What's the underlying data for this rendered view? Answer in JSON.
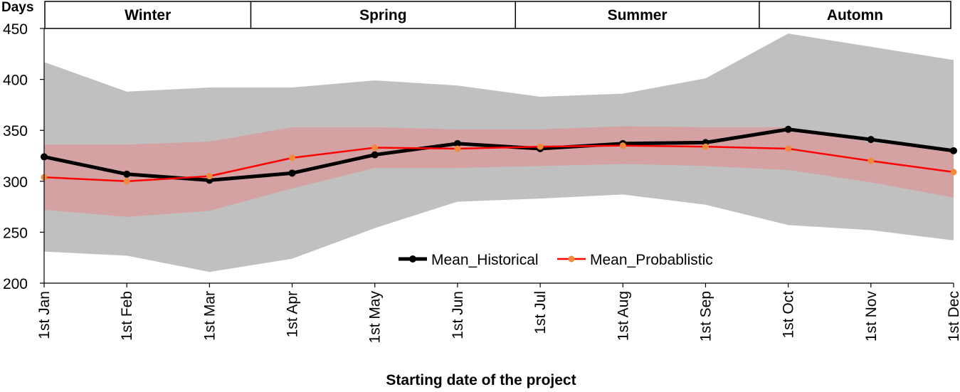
{
  "chart_data": {
    "type": "area",
    "y_unit_label": "Days",
    "xlabel": "Starting date of the project",
    "ylim": [
      200,
      450
    ],
    "yticks": [
      200,
      250,
      300,
      350,
      400,
      450
    ],
    "grid": false,
    "legend_position": "bottom-center",
    "categories": [
      "1st Jan",
      "1st Feb",
      "1st Mar",
      "1st Apr",
      "1st May",
      "1st Jun",
      "1st Jul",
      "1st Aug",
      "1st Sep",
      "1st Oct",
      "1st Nov",
      "1st Dec"
    ],
    "seasons": [
      {
        "label": "Winter",
        "from_index": 0,
        "to_index": 2.5
      },
      {
        "label": "Spring",
        "from_index": 2.5,
        "to_index": 5.7
      },
      {
        "label": "Summer",
        "from_index": 5.7,
        "to_index": 8.65
      },
      {
        "label": "Automn",
        "from_index": 8.65,
        "to_index": 11
      }
    ],
    "bands": [
      {
        "kind": "historical_range",
        "color": "#c0c0c0",
        "upper": [
          417,
          388,
          392,
          392,
          399,
          394,
          383,
          386,
          401,
          445,
          432,
          419
        ],
        "lower": [
          231,
          227,
          211,
          224,
          254,
          280,
          283,
          287,
          277,
          257,
          252,
          242
        ]
      },
      {
        "kind": "probabilistic_range",
        "color": "#d4a2a2",
        "upper": [
          336,
          336,
          339,
          353,
          353,
          351,
          351,
          354,
          353,
          353,
          338,
          332
        ],
        "lower": [
          272,
          265,
          271,
          293,
          313,
          313,
          315,
          317,
          315,
          311,
          299,
          284
        ]
      }
    ],
    "series": [
      {
        "name": "Mean_Historical",
        "color": "#000000",
        "marker_color": "#000000",
        "values": [
          324,
          307,
          301,
          308,
          326,
          337,
          332,
          337,
          338,
          351,
          341,
          330
        ]
      },
      {
        "name": "Mean_Probablistic",
        "color": "#ff0000",
        "marker_color": "#f08a3c",
        "values": [
          304,
          300,
          305,
          323,
          333,
          332,
          334,
          335,
          334,
          332,
          320,
          309
        ]
      }
    ]
  }
}
